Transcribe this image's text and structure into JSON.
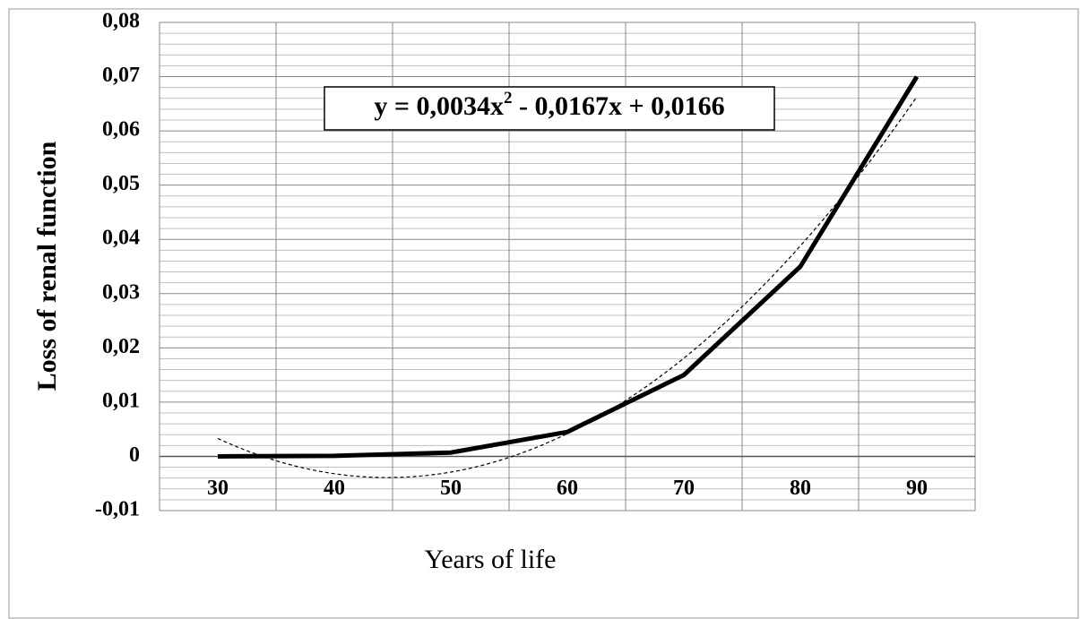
{
  "chart_data": {
    "type": "line",
    "y_label": "Loss of renal function",
    "x_label": "Years of life",
    "categories": [
      "30",
      "40",
      "50",
      "60",
      "70",
      "80",
      "90"
    ],
    "series": [
      {
        "name": "Loss of renal function",
        "color": "#000000",
        "values": [
          0,
          0.0001,
          0.0007,
          0.0045,
          0.015,
          0.035,
          0.07
        ]
      }
    ],
    "trendline": {
      "type": "polynomial",
      "coefficients": [
        0.0034,
        -0.0167,
        0.0166
      ],
      "color": "#000000",
      "equation_parts": [
        "y = 0,0034x",
        "2",
        " - 0,0167x + 0,0166"
      ]
    },
    "ylim": [
      -0.01,
      0.08
    ],
    "yticks": [
      {
        "value": -0.01,
        "label": "-0,01"
      },
      0,
      {
        "value": 0.01,
        "label": "0,01"
      },
      {
        "value": 0.02,
        "label": "0,02"
      },
      {
        "value": 0.03,
        "label": "0,03"
      },
      {
        "value": 0.04,
        "label": "0,04"
      },
      {
        "value": 0.05,
        "label": "0,05"
      },
      {
        "value": 0.06,
        "label": "0,06"
      },
      {
        "value": 0.07,
        "label": "0,07"
      },
      {
        "value": 0.08,
        "label": "0,08"
      }
    ],
    "grid": true,
    "minor_grid": true,
    "vertical_grid": true
  }
}
